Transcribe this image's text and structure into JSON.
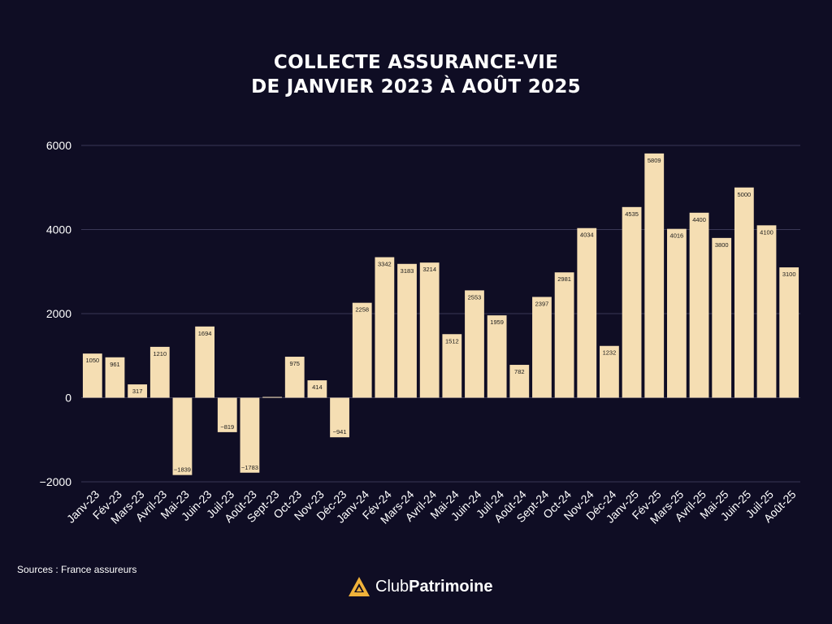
{
  "chart_data": {
    "type": "bar",
    "title_line1": "COLLECTE ASSURANCE-VIE",
    "title_line2": "DE JANVIER 2023 À AOÛT 2025",
    "xlabel": "",
    "ylabel": "",
    "ylim": [
      -2000,
      6000
    ],
    "yticks": [
      -2000,
      0,
      2000,
      4000,
      6000
    ],
    "ytick_labels": [
      "−2000",
      "0",
      "2000",
      "4000",
      "6000"
    ],
    "grid": true,
    "categories": [
      "Janv-23",
      "Fév-23",
      "Mars-23",
      "Avril-23",
      "Mai-23",
      "Juin-23",
      "Juil-23",
      "Août-23",
      "Sept-23",
      "Oct-23",
      "Nov-23",
      "Déc-23",
      "Janv-24",
      "Fév-24",
      "Mars-24",
      "Avril-24",
      "Mai-24",
      "Juin-24",
      "Juil-24",
      "Août-24",
      "Sept-24",
      "Oct-24",
      "Nov-24",
      "Déc-24",
      "Janv-25",
      "Fév-25",
      "Mars-25",
      "Avril-25",
      "Mai-25",
      "Juin-25",
      "Juil-25",
      "Août-25"
    ],
    "values": [
      1050,
      961,
      317,
      1210,
      -1839,
      1694,
      -819,
      -1783,
      19,
      975,
      414,
      -941,
      2258,
      3342,
      3183,
      3214,
      1512,
      2553,
      1959,
      782,
      2397,
      2981,
      4034,
      1232,
      4535,
      5809,
      4016,
      4400,
      3800,
      5000,
      4100,
      3100
    ],
    "value_labels": [
      "1050",
      "961",
      "317",
      "1210",
      "−1839",
      "1694",
      "−819",
      "−1783",
      "",
      "975",
      "414",
      "−941",
      "2258",
      "3342",
      "3183",
      "3214",
      "1512",
      "2553",
      "1959",
      "782",
      "2397",
      "2981",
      "4034",
      "1232",
      "4535",
      "5809",
      "4016",
      "4400",
      "3800",
      "5000",
      "4100",
      "3100"
    ],
    "bar_color": "#f5deb3",
    "label_color": "#1a1a1a"
  },
  "footer": {
    "source": "Sources : France assureurs",
    "brand_light": "Club",
    "brand_bold": "Patrimoine",
    "logo_icon": "triangle-logo-icon",
    "logo_color": "#f0b23a"
  }
}
